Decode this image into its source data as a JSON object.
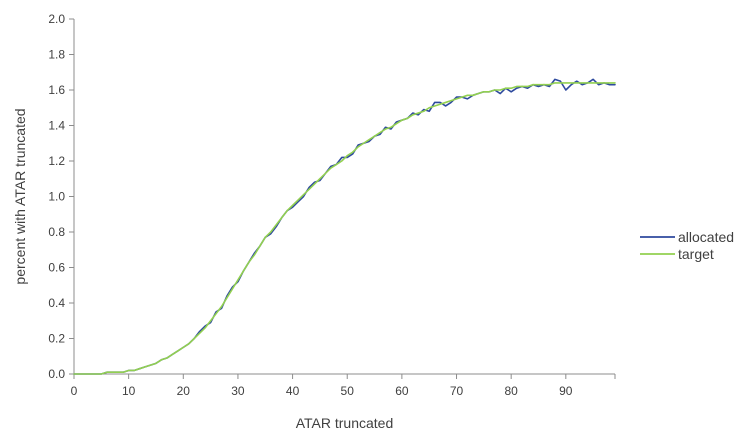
{
  "chart_data": {
    "type": "line",
    "title": "",
    "xlabel": "ATAR truncated",
    "ylabel": "percent with ATAR truncated",
    "xlim": [
      0,
      99
    ],
    "ylim": [
      0,
      2.0
    ],
    "x_ticks": [
      0,
      10,
      20,
      30,
      40,
      50,
      60,
      70,
      80,
      90
    ],
    "x_tick_labels": [
      "0",
      "10",
      "20",
      "30",
      "40",
      "50",
      "60",
      "70",
      "80",
      "90"
    ],
    "y_ticks": [
      0,
      0.2,
      0.4,
      0.6,
      0.8,
      1.0,
      1.2,
      1.4,
      1.6,
      1.8,
      2.0
    ],
    "y_tick_labels": [
      "0.0",
      "0.2",
      "0.4",
      "0.6",
      "0.8",
      "1.0",
      "1.2",
      "1.4",
      "1.6",
      "1.8",
      "2.0"
    ],
    "grid": false,
    "legend_position": "right",
    "x": [
      0,
      1,
      2,
      3,
      4,
      5,
      6,
      7,
      8,
      9,
      10,
      11,
      12,
      13,
      14,
      15,
      16,
      17,
      18,
      19,
      20,
      21,
      22,
      23,
      24,
      25,
      26,
      27,
      28,
      29,
      30,
      31,
      32,
      33,
      34,
      35,
      36,
      37,
      38,
      39,
      40,
      41,
      42,
      43,
      44,
      45,
      46,
      47,
      48,
      49,
      50,
      51,
      52,
      53,
      54,
      55,
      56,
      57,
      58,
      59,
      60,
      61,
      62,
      63,
      64,
      65,
      66,
      67,
      68,
      69,
      70,
      71,
      72,
      73,
      74,
      75,
      76,
      77,
      78,
      79,
      80,
      81,
      82,
      83,
      84,
      85,
      86,
      87,
      88,
      89,
      90,
      91,
      92,
      93,
      94,
      95,
      96,
      97,
      98,
      99
    ],
    "series": [
      {
        "name": "allocated",
        "color": "#2e4a9e",
        "values": [
          0.0,
          0.0,
          0.0,
          0.0,
          0.0,
          0.0,
          0.01,
          0.01,
          0.01,
          0.01,
          0.02,
          0.02,
          0.03,
          0.04,
          0.05,
          0.06,
          0.08,
          0.09,
          0.11,
          0.13,
          0.15,
          0.17,
          0.2,
          0.24,
          0.27,
          0.29,
          0.35,
          0.37,
          0.44,
          0.49,
          0.52,
          0.58,
          0.63,
          0.68,
          0.72,
          0.77,
          0.79,
          0.83,
          0.88,
          0.92,
          0.94,
          0.97,
          1.0,
          1.05,
          1.08,
          1.09,
          1.13,
          1.17,
          1.18,
          1.22,
          1.22,
          1.24,
          1.29,
          1.3,
          1.31,
          1.34,
          1.35,
          1.39,
          1.38,
          1.42,
          1.43,
          1.44,
          1.47,
          1.46,
          1.49,
          1.48,
          1.53,
          1.53,
          1.51,
          1.53,
          1.56,
          1.56,
          1.55,
          1.57,
          1.58,
          1.59,
          1.59,
          1.6,
          1.58,
          1.61,
          1.59,
          1.61,
          1.62,
          1.61,
          1.63,
          1.62,
          1.63,
          1.62,
          1.66,
          1.65,
          1.6,
          1.63,
          1.65,
          1.63,
          1.64,
          1.66,
          1.63,
          1.64,
          1.63,
          1.63
        ]
      },
      {
        "name": "target",
        "color": "#92d050",
        "values": [
          0.0,
          0.0,
          0.0,
          0.0,
          0.0,
          0.0,
          0.01,
          0.01,
          0.01,
          0.01,
          0.02,
          0.02,
          0.03,
          0.04,
          0.05,
          0.06,
          0.08,
          0.09,
          0.11,
          0.13,
          0.15,
          0.17,
          0.2,
          0.23,
          0.26,
          0.3,
          0.34,
          0.38,
          0.43,
          0.48,
          0.53,
          0.58,
          0.63,
          0.67,
          0.72,
          0.77,
          0.8,
          0.84,
          0.88,
          0.92,
          0.95,
          0.98,
          1.01,
          1.04,
          1.07,
          1.1,
          1.13,
          1.16,
          1.18,
          1.2,
          1.23,
          1.25,
          1.28,
          1.3,
          1.32,
          1.34,
          1.36,
          1.38,
          1.39,
          1.41,
          1.43,
          1.44,
          1.46,
          1.47,
          1.48,
          1.5,
          1.51,
          1.52,
          1.53,
          1.54,
          1.55,
          1.56,
          1.57,
          1.57,
          1.58,
          1.59,
          1.59,
          1.6,
          1.6,
          1.61,
          1.61,
          1.62,
          1.62,
          1.62,
          1.63,
          1.63,
          1.63,
          1.63,
          1.64,
          1.64,
          1.64,
          1.64,
          1.64,
          1.64,
          1.64,
          1.64,
          1.64,
          1.64,
          1.64,
          1.64
        ]
      }
    ]
  }
}
